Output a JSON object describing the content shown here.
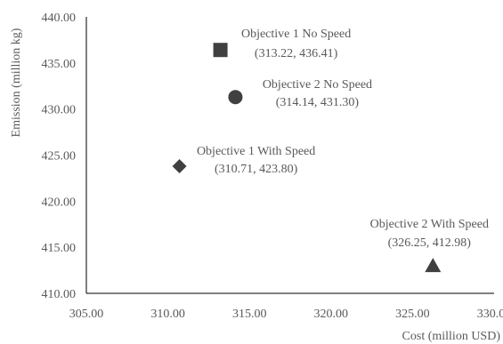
{
  "chart_data": {
    "type": "scatter",
    "title": "",
    "xlabel": "Cost (million USD)",
    "ylabel": "Emission (million kg)",
    "xlim": [
      305,
      330
    ],
    "ylim": [
      410,
      440
    ],
    "x_ticks": [
      "305.00",
      "310.00",
      "315.00",
      "320.00",
      "325.00",
      "330.00"
    ],
    "y_ticks": [
      "410.00",
      "415.00",
      "420.00",
      "425.00",
      "430.00",
      "435.00",
      "440.00"
    ],
    "grid": false,
    "legend": "none",
    "marker_color": "#404040",
    "points": [
      {
        "name": "Objective 1 No Speed",
        "x": 313.22,
        "y": 436.41,
        "marker": "square",
        "coord_label": "(313.22, 436.41)"
      },
      {
        "name": "Objective 2 No Speed",
        "x": 314.14,
        "y": 431.3,
        "marker": "circle",
        "coord_label": "(314.14, 431.30)"
      },
      {
        "name": "Objective 1 With Speed",
        "x": 310.71,
        "y": 423.8,
        "marker": "diamond",
        "coord_label": "(310.71, 423.80)"
      },
      {
        "name": "Objective 2 With Speed",
        "x": 326.25,
        "y": 412.98,
        "marker": "triangle",
        "coord_label": "(326.25, 412.98)"
      }
    ]
  }
}
